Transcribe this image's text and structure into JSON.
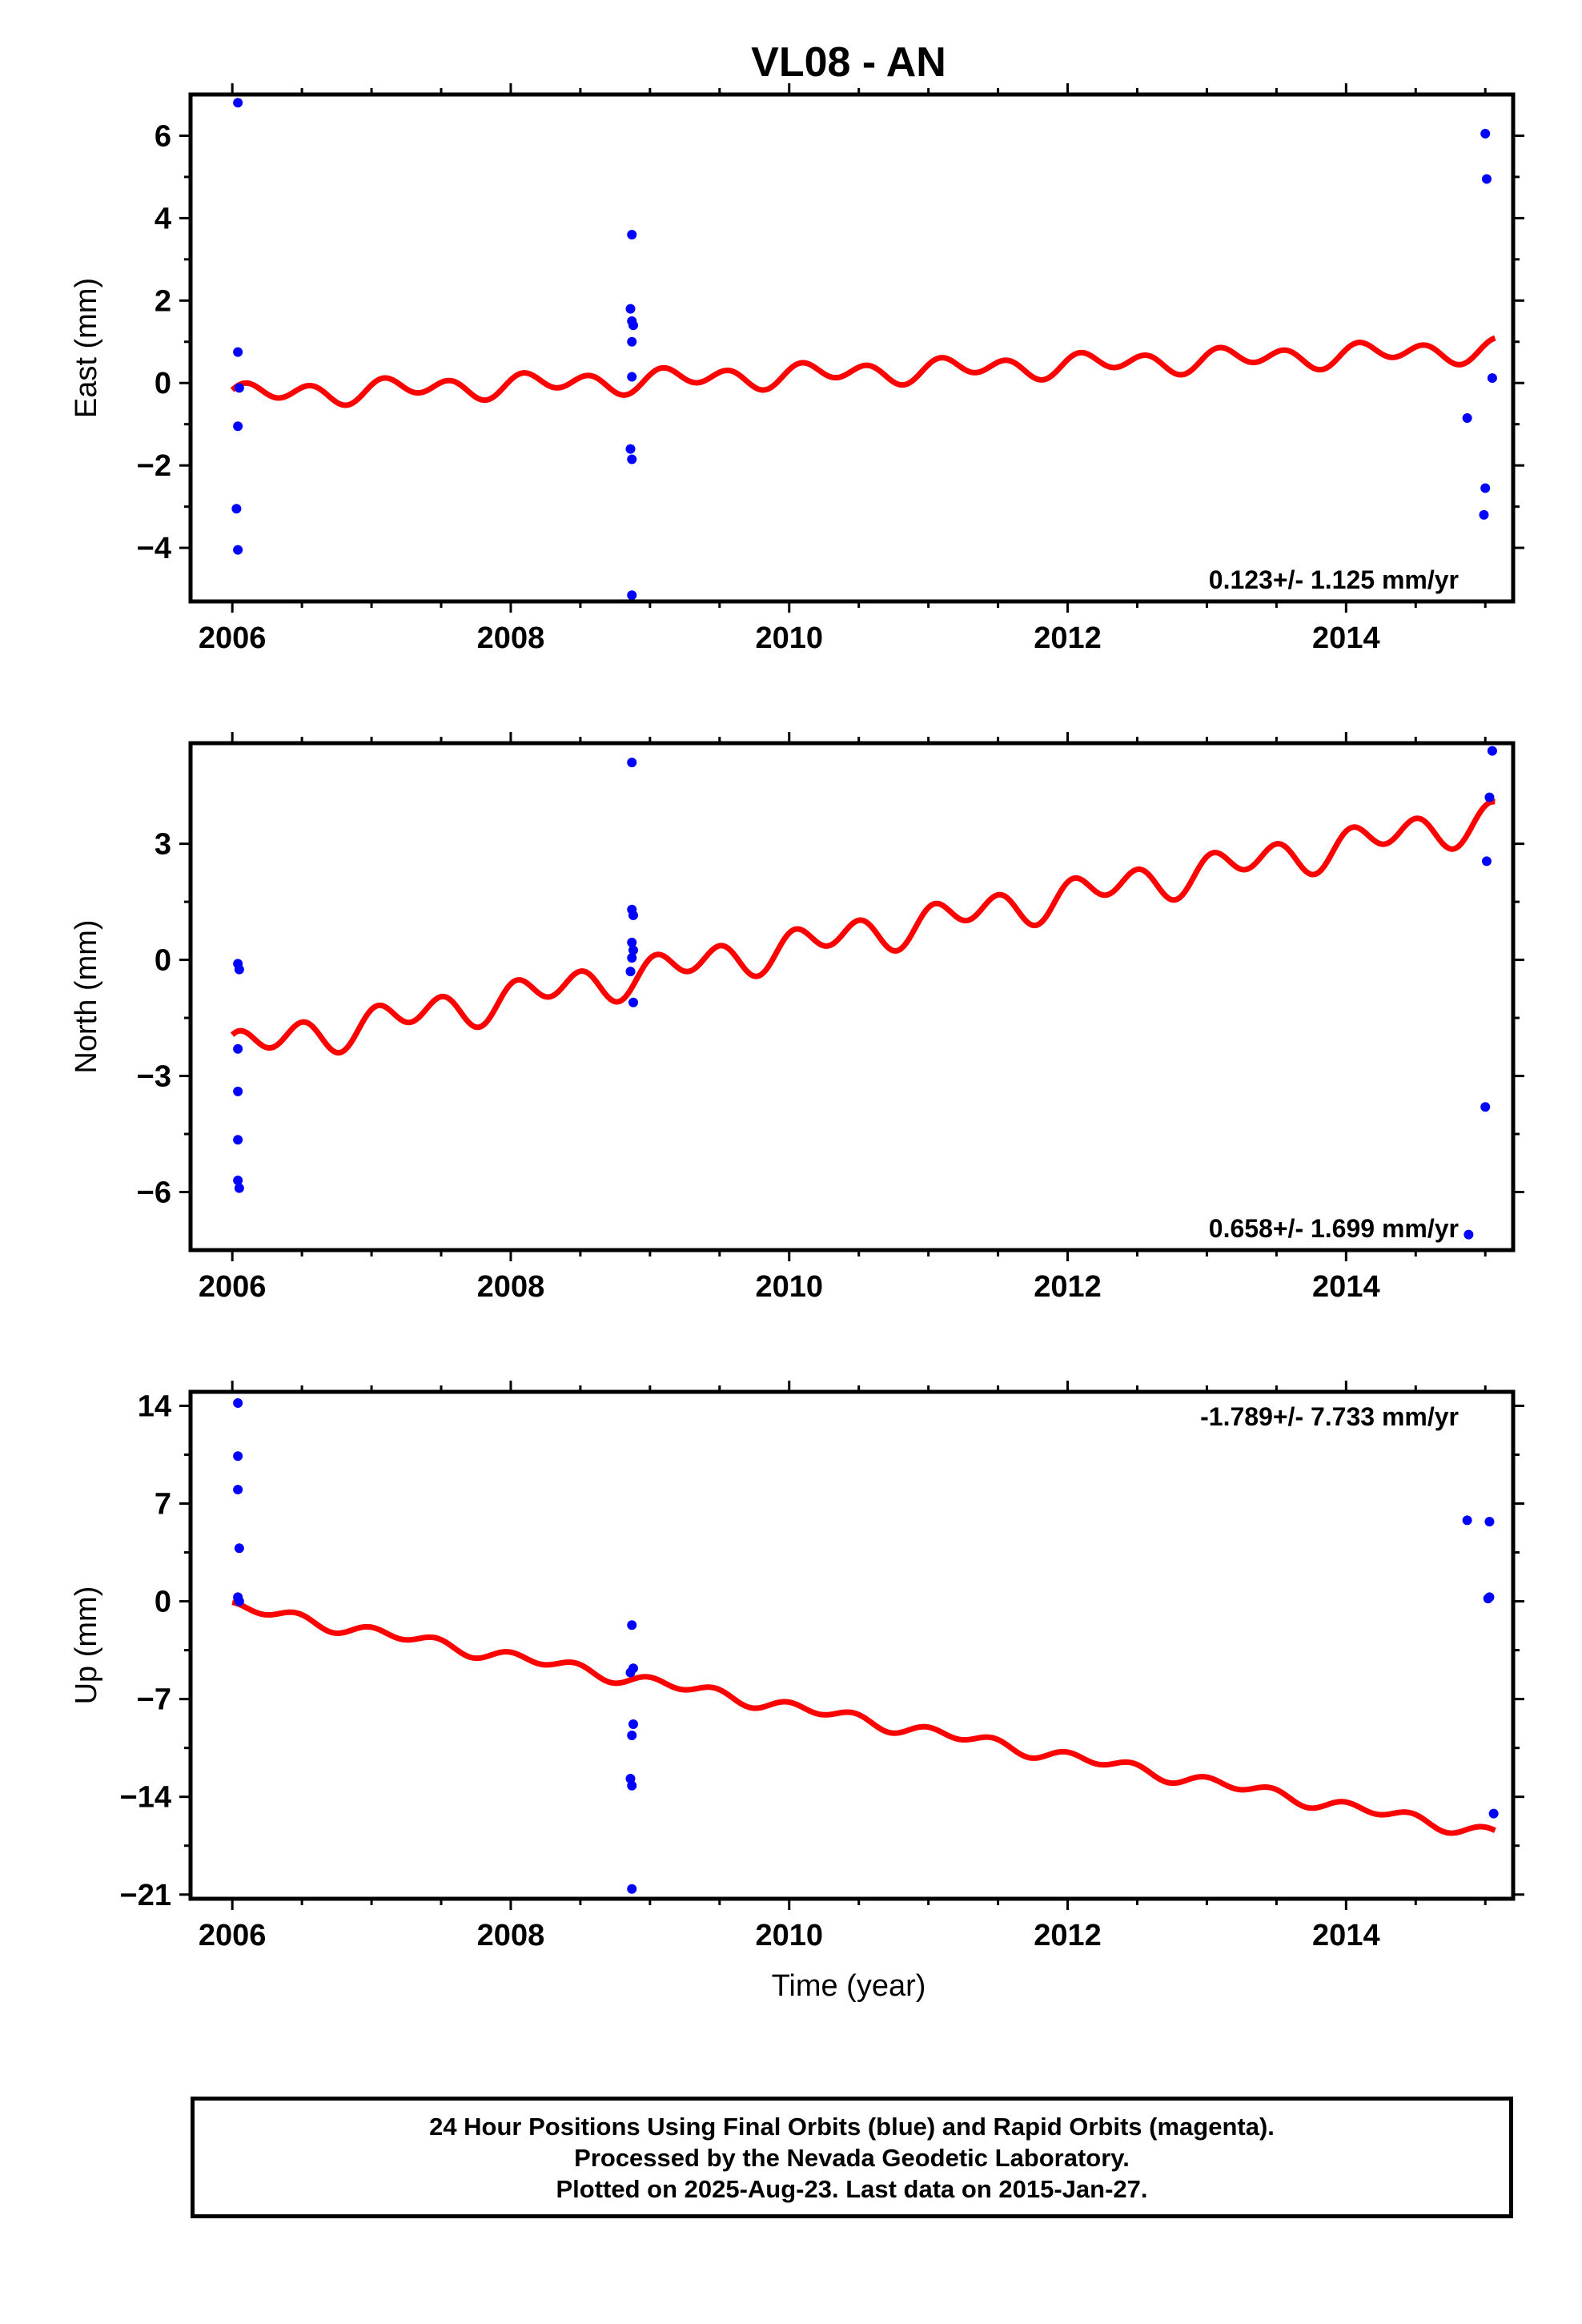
{
  "title": "VL08 - AN",
  "xlabel": "Time (year)",
  "footer": {
    "line1": "24 Hour Positions Using Final Orbits (blue) and Rapid Orbits (magenta).",
    "line2": "Processed by the Nevada Geodetic Laboratory.",
    "line3": "Plotted on 2025-Aug-23. Last data on 2015-Jan-27."
  },
  "colors": {
    "points": "#0000ff",
    "fit": "#ff0000",
    "frame": "#000000"
  },
  "chart_data": [
    {
      "type": "scatter",
      "name": "east",
      "ylabel": "East (mm)",
      "xlim": [
        2005.7,
        2015.2
      ],
      "ylim": [
        -5.3,
        7.0
      ],
      "xticks": [
        2006,
        2008,
        2010,
        2012,
        2014
      ],
      "xtick_labels": [
        "2006",
        "2008",
        "2010",
        "2012",
        "2014"
      ],
      "yticks": [
        -4,
        -2,
        0,
        2,
        4,
        6
      ],
      "ytick_labels": [
        "−4",
        "−2",
        "0",
        "2",
        "4",
        "6"
      ],
      "rate_label": "0.123+/- 1.125 mm/yr",
      "rate_position": "bottom-right",
      "points": [
        [
          2006.04,
          6.8
        ],
        [
          2006.04,
          0.75
        ],
        [
          2006.05,
          -0.12
        ],
        [
          2006.04,
          -1.05
        ],
        [
          2006.03,
          -3.05
        ],
        [
          2006.04,
          -4.05
        ],
        [
          2008.87,
          3.6
        ],
        [
          2008.86,
          1.8
        ],
        [
          2008.87,
          1.5
        ],
        [
          2008.88,
          1.4
        ],
        [
          2008.87,
          1.0
        ],
        [
          2008.87,
          0.15
        ],
        [
          2008.86,
          -1.6
        ],
        [
          2008.87,
          -1.85
        ],
        [
          2008.87,
          -5.15
        ],
        [
          2014.87,
          -0.85
        ],
        [
          2015.0,
          6.05
        ],
        [
          2015.01,
          4.95
        ],
        [
          2015.05,
          0.12
        ],
        [
          2015.0,
          -2.55
        ],
        [
          2014.99,
          -3.2
        ]
      ],
      "fit": {
        "start": 2006.0,
        "end": 2015.07,
        "value_at_start": -0.3,
        "rate": 0.123,
        "amplitude": 0.22,
        "phase": 0.1
      }
    },
    {
      "type": "scatter",
      "name": "north",
      "ylabel": "North (mm)",
      "xlim": [
        2005.7,
        2015.2
      ],
      "ylim": [
        -7.5,
        5.6
      ],
      "xticks": [
        2006,
        2008,
        2010,
        2012,
        2014
      ],
      "xtick_labels": [
        "2006",
        "2008",
        "2010",
        "2012",
        "2014"
      ],
      "yticks": [
        -6,
        -3,
        0,
        3
      ],
      "ytick_labels": [
        "−6",
        "−3",
        "0",
        "3"
      ],
      "rate_label": "0.658+/- 1.699 mm/yr",
      "rate_position": "bottom-right",
      "points": [
        [
          2006.04,
          -0.1
        ],
        [
          2006.05,
          -0.25
        ],
        [
          2006.04,
          -2.3
        ],
        [
          2006.04,
          -3.4
        ],
        [
          2006.04,
          -4.65
        ],
        [
          2006.04,
          -5.7
        ],
        [
          2006.05,
          -5.9
        ],
        [
          2008.87,
          5.1
        ],
        [
          2008.87,
          1.3
        ],
        [
          2008.88,
          1.15
        ],
        [
          2008.87,
          0.45
        ],
        [
          2008.88,
          0.25
        ],
        [
          2008.87,
          0.05
        ],
        [
          2008.86,
          -0.3
        ],
        [
          2008.88,
          -1.1
        ],
        [
          2014.88,
          -7.1
        ],
        [
          2015.05,
          5.4
        ],
        [
          2015.03,
          4.2
        ],
        [
          2015.01,
          2.55
        ],
        [
          2015.0,
          -3.8
        ]
      ],
      "fit": {
        "start": 2006.0,
        "end": 2015.07,
        "value_at_start": -2.3,
        "rate": 0.658,
        "amplitude": 0.38,
        "phase": 0.2
      }
    },
    {
      "type": "scatter",
      "name": "up",
      "ylabel": "Up (mm)",
      "xlim": [
        2005.7,
        2015.2
      ],
      "ylim": [
        -21.3,
        15.0
      ],
      "xticks": [
        2006,
        2008,
        2010,
        2012,
        2014
      ],
      "xtick_labels": [
        "2006",
        "2008",
        "2010",
        "2012",
        "2014"
      ],
      "yticks": [
        -21,
        -14,
        -7,
        0,
        7,
        14
      ],
      "ytick_labels": [
        "−21",
        "−14",
        "−7",
        "0",
        "7",
        "14"
      ],
      "rate_label": "-1.789+/- 7.733 mm/yr",
      "rate_position": "top-right",
      "points": [
        [
          2006.04,
          14.2
        ],
        [
          2006.04,
          10.4
        ],
        [
          2006.04,
          8.0
        ],
        [
          2006.05,
          3.8
        ],
        [
          2006.04,
          0.3
        ],
        [
          2006.05,
          0.0
        ],
        [
          2008.87,
          -1.7
        ],
        [
          2008.88,
          -4.8
        ],
        [
          2008.86,
          -5.1
        ],
        [
          2008.88,
          -8.8
        ],
        [
          2008.87,
          -9.6
        ],
        [
          2008.86,
          -12.7
        ],
        [
          2008.87,
          -13.2
        ],
        [
          2008.87,
          -20.6
        ],
        [
          2014.87,
          5.8
        ],
        [
          2015.03,
          5.7
        ],
        [
          2015.02,
          0.2
        ],
        [
          2015.03,
          0.3
        ],
        [
          2015.06,
          -15.2
        ]
      ],
      "fit": {
        "start": 2006.0,
        "end": 2015.07,
        "value_at_start": -0.4,
        "rate": -1.789,
        "amplitude": 0.35,
        "phase": 0.3
      }
    }
  ]
}
